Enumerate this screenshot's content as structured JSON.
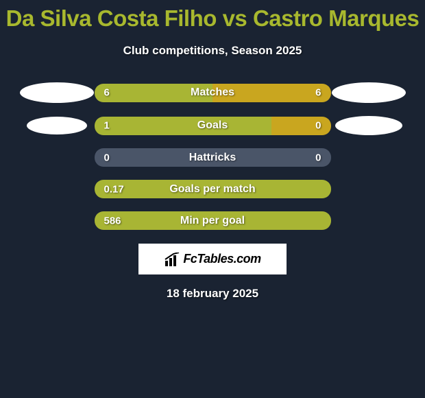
{
  "title": "Da Silva Costa Filho vs Castro Marques",
  "subtitle": "Club competitions, Season 2025",
  "colors": {
    "background": "#1a2332",
    "title": "#a8b82e",
    "text": "#ffffff",
    "bar_left": "#a8b534",
    "bar_right": "#c9a61f",
    "bar_empty": "#4a5568",
    "logo_bg": "#ffffff",
    "logo_text": "#000000"
  },
  "avatars": {
    "row1": {
      "left_w": 108,
      "left_h": 30,
      "right_w": 108,
      "right_h": 30
    },
    "row2": {
      "left_w": 88,
      "left_h": 26,
      "right_w": 98,
      "right_h": 28
    }
  },
  "stats": [
    {
      "label": "Matches",
      "left_value": "6",
      "right_value": "6",
      "left_pct": 50,
      "right_pct": 50,
      "show_right_value": true
    },
    {
      "label": "Goals",
      "left_value": "1",
      "right_value": "0",
      "left_pct": 75,
      "right_pct": 25,
      "show_right_value": true
    },
    {
      "label": "Hattricks",
      "left_value": "0",
      "right_value": "0",
      "left_pct": 0,
      "right_pct": 0,
      "show_right_value": true
    },
    {
      "label": "Goals per match",
      "left_value": "0.17",
      "right_value": "",
      "left_pct": 100,
      "right_pct": 0,
      "show_right_value": false
    },
    {
      "label": "Min per goal",
      "left_value": "586",
      "right_value": "",
      "left_pct": 100,
      "right_pct": 0,
      "show_right_value": false
    }
  ],
  "logo_text": "FcTables.com",
  "date": "18 february 2025",
  "fonts": {
    "title_size": 33,
    "subtitle_size": 17,
    "bar_label_size": 16,
    "bar_value_size": 15,
    "date_size": 17
  }
}
